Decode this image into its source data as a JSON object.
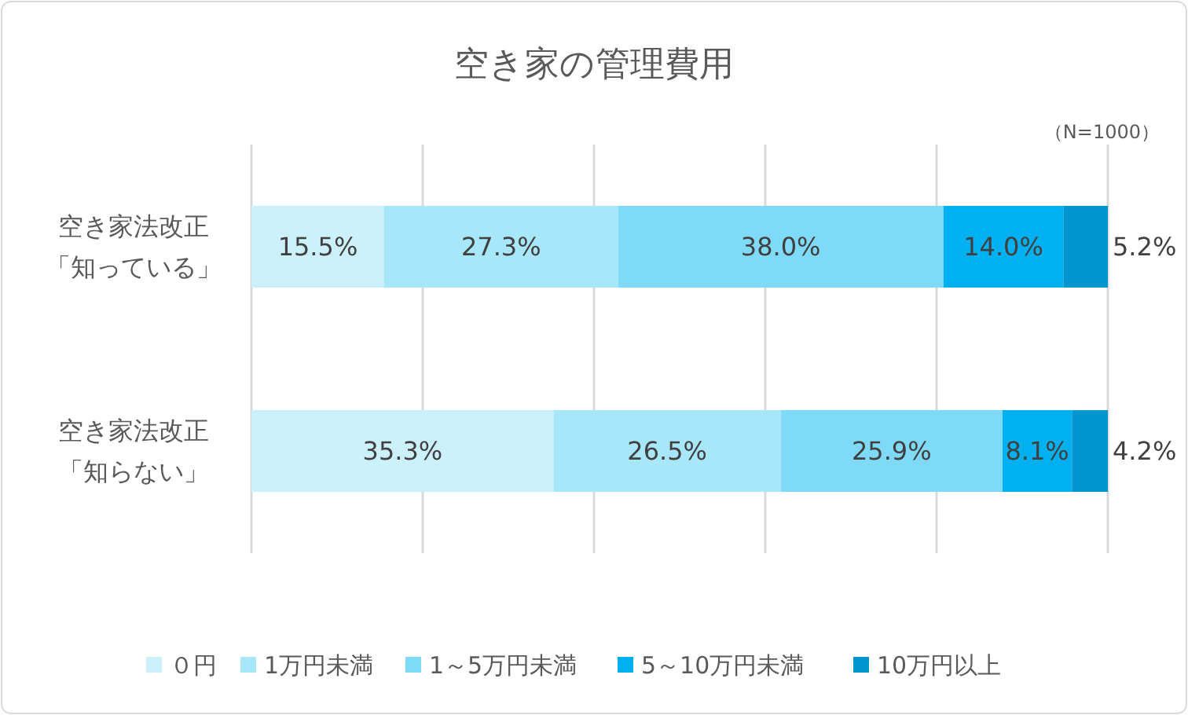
{
  "chart_data": {
    "type": "bar",
    "orientation": "horizontal",
    "stacked": true,
    "title": "空き家の管理費用",
    "annotations": [
      "（N=1000）"
    ],
    "categories": [
      "空き家法改正「知っている」",
      "空き家法改正「知らない」"
    ],
    "series": [
      {
        "name": "０円",
        "color": "#ccf0fc",
        "values": [
          15.5,
          35.3
        ],
        "value_labels": [
          "15.5%",
          "35.3%"
        ]
      },
      {
        "name": "1万円未満",
        "color": "#a8e6fa",
        "values": [
          27.3,
          26.5
        ],
        "value_labels": [
          "27.3%",
          "26.5%"
        ]
      },
      {
        "name": "1～5万円未満",
        "color": "#7fdaf8",
        "values": [
          38.0,
          25.9
        ],
        "value_labels": [
          "38.0%",
          "25.9%"
        ]
      },
      {
        "name": "5～10万円未満",
        "color": "#00b0f0",
        "values": [
          14.0,
          8.1
        ],
        "value_labels": [
          "14.0%",
          "8.1%"
        ]
      },
      {
        "name": "10万円以上",
        "color": "#0095d0",
        "values": [
          5.2,
          4.2
        ],
        "value_labels": [
          "5.2%",
          "4.2%"
        ]
      }
    ],
    "xlim": [
      0,
      100
    ],
    "xticks": [
      {
        "value": 0,
        "label": null
      },
      {
        "value": 20,
        "label": null
      },
      {
        "value": 40,
        "label": null
      },
      {
        "value": 60,
        "label": null
      },
      {
        "value": 80,
        "label": null
      },
      {
        "value": 100,
        "label": null
      }
    ],
    "grid": "x",
    "tick_labels": "y",
    "legend": "bottom"
  }
}
